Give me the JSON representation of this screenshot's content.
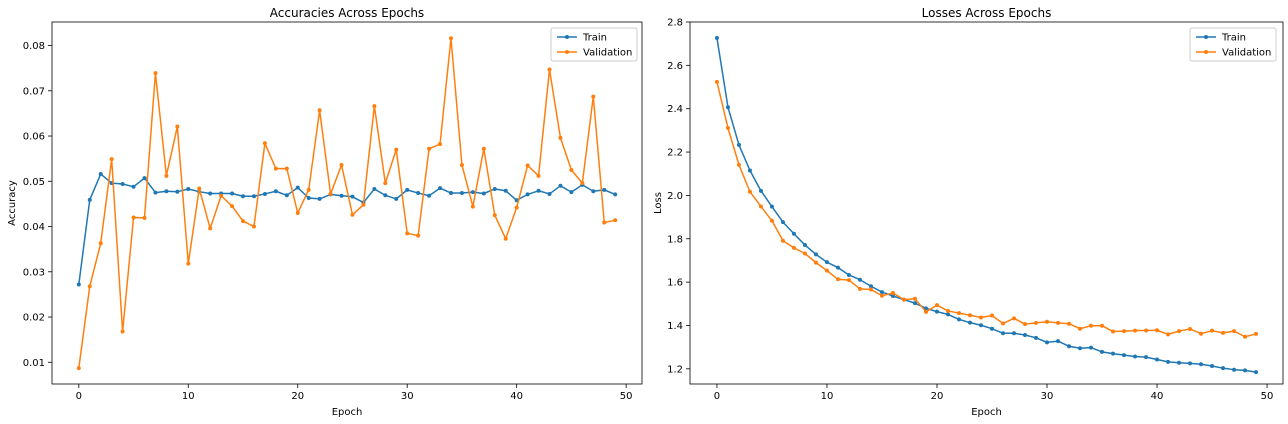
{
  "chart_data": [
    {
      "type": "line",
      "title": "Accuracies Across Epochs",
      "xlabel": "Epoch",
      "ylabel": "Accuracy",
      "xlim": [
        -2.45,
        51.45
      ],
      "ylim": [
        0.0052,
        0.0852
      ],
      "xticks": [
        0,
        10,
        20,
        30,
        40,
        50
      ],
      "yticks": [
        0.01,
        0.02,
        0.03,
        0.04,
        0.05,
        0.06,
        0.07,
        0.08
      ],
      "ytick_decimals": 2,
      "grid": false,
      "legend": "top-right",
      "x": [
        0,
        1,
        2,
        3,
        4,
        5,
        6,
        7,
        8,
        9,
        10,
        11,
        12,
        13,
        14,
        15,
        16,
        17,
        18,
        19,
        20,
        21,
        22,
        23,
        24,
        25,
        26,
        27,
        28,
        29,
        30,
        31,
        32,
        33,
        34,
        35,
        36,
        37,
        38,
        39,
        40,
        41,
        42,
        43,
        44,
        45,
        46,
        47,
        48,
        49
      ],
      "series": [
        {
          "name": "Train",
          "color": "#1f77b4",
          "values": [
            0.0272,
            0.0459,
            0.0516,
            0.0496,
            0.0494,
            0.0488,
            0.0507,
            0.0475,
            0.0478,
            0.0477,
            0.0483,
            0.0477,
            0.0473,
            0.0473,
            0.0473,
            0.0467,
            0.0467,
            0.0472,
            0.0478,
            0.0469,
            0.0486,
            0.0463,
            0.0461,
            0.0471,
            0.0468,
            0.0466,
            0.0453,
            0.0483,
            0.0469,
            0.0461,
            0.0481,
            0.0474,
            0.0468,
            0.0485,
            0.0474,
            0.0474,
            0.0476,
            0.0473,
            0.0483,
            0.0479,
            0.0458,
            0.0471,
            0.0479,
            0.0472,
            0.049,
            0.0476,
            0.0492,
            0.0478,
            0.0481,
            0.0471
          ]
        },
        {
          "name": "Validation",
          "color": "#ff7f0e",
          "values": [
            0.0087,
            0.0268,
            0.0363,
            0.0549,
            0.0168,
            0.042,
            0.0419,
            0.0739,
            0.0512,
            0.0621,
            0.0318,
            0.0484,
            0.0396,
            0.0468,
            0.0445,
            0.0412,
            0.04,
            0.0584,
            0.0528,
            0.0528,
            0.043,
            0.0481,
            0.0657,
            0.0472,
            0.0536,
            0.0426,
            0.0448,
            0.0666,
            0.0496,
            0.057,
            0.0385,
            0.038,
            0.0572,
            0.0582,
            0.0816,
            0.0536,
            0.0444,
            0.0572,
            0.0425,
            0.0373,
            0.0442,
            0.0535,
            0.0512,
            0.0747,
            0.0596,
            0.0525,
            0.0496,
            0.0687,
            0.0409,
            0.0414
          ]
        }
      ]
    },
    {
      "type": "line",
      "title": "Losses Across Epochs",
      "xlabel": "Epoch",
      "ylabel": "Loss",
      "xlim": [
        -2.45,
        51.45
      ],
      "ylim": [
        1.13,
        2.8
      ],
      "xticks": [
        0,
        10,
        20,
        30,
        40,
        50
      ],
      "yticks": [
        1.2,
        1.4,
        1.6,
        1.8,
        2.0,
        2.2,
        2.4,
        2.6,
        2.8
      ],
      "ytick_decimals": 1,
      "grid": false,
      "legend": "top-right",
      "x": [
        0,
        1,
        2,
        3,
        4,
        5,
        6,
        7,
        8,
        9,
        10,
        11,
        12,
        13,
        14,
        15,
        16,
        17,
        18,
        19,
        20,
        21,
        22,
        23,
        24,
        25,
        26,
        27,
        28,
        29,
        30,
        31,
        32,
        33,
        34,
        35,
        36,
        37,
        38,
        39,
        40,
        41,
        42,
        43,
        44,
        45,
        46,
        47,
        48,
        49
      ],
      "series": [
        {
          "name": "Train",
          "color": "#1f77b4",
          "values": [
            2.726,
            2.407,
            2.233,
            2.115,
            2.021,
            1.948,
            1.877,
            1.823,
            1.771,
            1.728,
            1.692,
            1.667,
            1.633,
            1.611,
            1.581,
            1.554,
            1.536,
            1.519,
            1.503,
            1.479,
            1.464,
            1.451,
            1.428,
            1.413,
            1.401,
            1.385,
            1.364,
            1.364,
            1.356,
            1.343,
            1.322,
            1.328,
            1.304,
            1.295,
            1.298,
            1.278,
            1.27,
            1.263,
            1.257,
            1.254,
            1.243,
            1.232,
            1.228,
            1.225,
            1.221,
            1.213,
            1.203,
            1.196,
            1.193,
            1.185
          ]
        },
        {
          "name": "Validation",
          "color": "#ff7f0e",
          "values": [
            2.524,
            2.311,
            2.141,
            2.017,
            1.949,
            1.883,
            1.791,
            1.758,
            1.732,
            1.69,
            1.653,
            1.613,
            1.609,
            1.569,
            1.566,
            1.537,
            1.55,
            1.519,
            1.523,
            1.463,
            1.494,
            1.467,
            1.457,
            1.447,
            1.437,
            1.446,
            1.409,
            1.433,
            1.406,
            1.412,
            1.417,
            1.412,
            1.408,
            1.385,
            1.399,
            1.399,
            1.372,
            1.374,
            1.376,
            1.377,
            1.378,
            1.359,
            1.374,
            1.384,
            1.362,
            1.376,
            1.366,
            1.374,
            1.348,
            1.361
          ]
        }
      ]
    }
  ]
}
